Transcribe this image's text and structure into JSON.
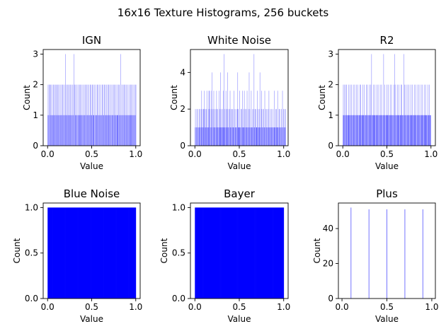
{
  "suptitle": "16x16 Texture Histograms, 256 buckets",
  "colors": {
    "bar": "#0000ff",
    "axis": "#000000",
    "background": "#ffffff"
  },
  "chart_data": [
    {
      "type": "bar",
      "title": "IGN",
      "xlabel": "Value",
      "ylabel": "Count",
      "xlim": [
        -0.05,
        1.05
      ],
      "ylim": [
        0,
        3.15
      ],
      "xticks": [
        0.0,
        0.5,
        1.0
      ],
      "xtick_labels": [
        "0.0",
        "0.5",
        "1.0"
      ],
      "yticks": [
        0,
        1,
        2,
        3
      ],
      "ytick_labels": [
        "0",
        "1",
        "2",
        "3"
      ],
      "bins": 256,
      "bin_range": [
        0,
        1
      ],
      "counts_estimated": true,
      "values": [
        1,
        2,
        1,
        0,
        2,
        1,
        0,
        2,
        1,
        2,
        0,
        1,
        2,
        1,
        0,
        1,
        2,
        1,
        0,
        2,
        1,
        1,
        2,
        0,
        1,
        2,
        1,
        0,
        2,
        1,
        2,
        1,
        0,
        1,
        2,
        1,
        0,
        1,
        2,
        1,
        1,
        0,
        2,
        1,
        2,
        1,
        0,
        1,
        2,
        0,
        1,
        3,
        1,
        0,
        2,
        1,
        1,
        2,
        0,
        1,
        2,
        1,
        0,
        1,
        2,
        1,
        2,
        0,
        1,
        1,
        2,
        0,
        1,
        2,
        1,
        0,
        3,
        1,
        2,
        0,
        1,
        2,
        1,
        1,
        0,
        2,
        1,
        0,
        1,
        2,
        1,
        0,
        2,
        1,
        1,
        2,
        0,
        1,
        2,
        1,
        1,
        0,
        2,
        1,
        0,
        1,
        2,
        1,
        1,
        0,
        2,
        1,
        2,
        0,
        1,
        1,
        2,
        0,
        1,
        2,
        1,
        0,
        1,
        2,
        1,
        0,
        2,
        1,
        1,
        2,
        0,
        1,
        2,
        1,
        1,
        0,
        2,
        1,
        0,
        1,
        2,
        1,
        1,
        0,
        2,
        1,
        2,
        1,
        0,
        1,
        2,
        1,
        0,
        1,
        2,
        1,
        1,
        0,
        2,
        1,
        2,
        0,
        1,
        1,
        2,
        0,
        1,
        2,
        1,
        0,
        1,
        2,
        1,
        0,
        2,
        1,
        1,
        2,
        0,
        1,
        2,
        1,
        1,
        0,
        2,
        1,
        0,
        1,
        2,
        1,
        1,
        0,
        2,
        1,
        2,
        1,
        0,
        1,
        2,
        1,
        0,
        1,
        2,
        1,
        1,
        0,
        2,
        1,
        2,
        0,
        1,
        1,
        3,
        0,
        1,
        2,
        1,
        0,
        1,
        2,
        1,
        0,
        2,
        1,
        1,
        2,
        0,
        1,
        2,
        1,
        1,
        0,
        2,
        1,
        0,
        1,
        2,
        1,
        1,
        0,
        2,
        1,
        2,
        1,
        0,
        1,
        2,
        1,
        0,
        1,
        2,
        1,
        1,
        0,
        2,
        1,
        2
      ]
    },
    {
      "type": "bar",
      "title": "White Noise",
      "xlabel": "Value",
      "ylabel": "Count",
      "xlim": [
        -0.05,
        1.05
      ],
      "ylim": [
        0,
        5.25
      ],
      "xticks": [
        0.0,
        0.5,
        1.0
      ],
      "xtick_labels": [
        "0.0",
        "0.5",
        "1.0"
      ],
      "yticks": [
        0,
        2,
        4
      ],
      "ytick_labels": [
        "0",
        "2",
        "4"
      ],
      "bins": 256,
      "bin_range": [
        0,
        1
      ],
      "counts_estimated": true,
      "values": [
        1,
        2,
        0,
        1,
        1,
        2,
        0,
        1,
        2,
        1,
        0,
        1,
        1,
        2,
        2,
        1,
        0,
        1,
        2,
        3,
        1,
        1,
        0,
        2,
        1,
        2,
        3,
        2,
        1,
        0,
        1,
        2,
        2,
        1,
        3,
        0,
        1,
        1,
        2,
        1,
        3,
        3,
        1,
        2,
        0,
        1,
        3,
        1,
        2,
        4,
        1,
        0,
        2,
        1,
        3,
        1,
        2,
        1,
        1,
        0,
        2,
        1,
        3,
        2,
        1,
        1,
        2,
        1,
        0,
        3,
        1,
        2,
        1,
        4,
        1,
        2,
        1,
        0,
        1,
        2,
        1,
        3,
        1,
        1,
        5,
        2,
        1,
        0,
        1,
        3,
        2,
        1,
        1,
        2,
        4,
        1,
        1,
        2,
        0,
        1,
        2,
        3,
        1,
        1,
        2,
        1,
        0,
        2,
        1,
        2,
        1,
        1,
        3,
        1,
        0,
        2,
        1,
        1,
        2,
        1,
        0,
        1,
        2,
        4,
        1,
        2,
        1,
        1,
        3,
        1,
        0,
        1,
        2,
        1,
        2,
        0,
        1,
        3,
        1,
        1,
        2,
        1,
        3,
        1,
        0,
        2,
        1,
        1,
        2,
        1,
        3,
        1,
        0,
        1,
        2,
        1,
        4,
        1,
        2,
        1,
        0,
        1,
        3,
        1,
        1,
        2,
        1,
        0,
        1,
        2,
        5,
        1,
        1,
        2,
        0,
        1,
        2,
        1,
        1,
        3,
        1,
        0,
        2,
        1,
        1,
        2,
        1,
        4,
        1,
        0,
        1,
        2,
        3,
        1,
        1,
        2,
        0,
        1,
        2,
        1,
        1,
        3,
        1,
        0,
        2,
        1,
        1,
        2,
        1,
        0,
        1,
        2,
        1,
        3,
        1,
        1,
        0,
        2,
        1,
        1,
        2,
        1,
        0,
        1,
        1,
        2,
        1,
        0,
        1,
        3,
        1,
        1,
        2,
        0,
        1,
        2,
        1,
        1,
        3,
        1,
        0,
        1,
        2,
        1,
        2,
        1,
        0,
        1,
        1,
        2,
        1,
        0,
        3,
        1,
        1,
        2,
        0,
        1,
        2,
        1,
        1,
        2
      ]
    },
    {
      "type": "bar",
      "title": "R2",
      "xlabel": "Value",
      "ylabel": "Count",
      "xlim": [
        -0.05,
        1.05
      ],
      "ylim": [
        0,
        3.15
      ],
      "xticks": [
        0.0,
        0.5,
        1.0
      ],
      "xtick_labels": [
        "0.0",
        "0.5",
        "1.0"
      ],
      "yticks": [
        0,
        1,
        2,
        3
      ],
      "ytick_labels": [
        "0",
        "1",
        "2",
        "3"
      ],
      "bins": 256,
      "bin_range": [
        0,
        1
      ],
      "counts_estimated": true,
      "values": [
        1,
        2,
        1,
        1,
        2,
        1,
        0,
        1,
        2,
        1,
        1,
        2,
        1,
        0,
        1,
        1,
        2,
        1,
        1,
        1,
        0,
        2,
        1,
        1,
        1,
        2,
        1,
        0,
        1,
        1,
        2,
        1,
        1,
        1,
        2,
        1,
        0,
        1,
        1,
        2,
        1,
        1,
        1,
        2,
        1,
        0,
        1,
        1,
        1,
        2,
        1,
        1,
        2,
        1,
        0,
        1,
        1,
        1,
        2,
        1,
        1,
        1,
        2,
        0,
        1,
        1,
        1,
        1,
        2,
        1,
        1,
        2,
        1,
        0,
        1,
        1,
        1,
        2,
        1,
        1,
        1,
        2,
        1,
        3,
        1,
        0,
        1,
        1,
        2,
        1,
        1,
        1,
        2,
        1,
        1,
        0,
        1,
        1,
        2,
        1,
        1,
        1,
        2,
        1,
        0,
        1,
        1,
        1,
        2,
        1,
        1,
        1,
        2,
        1,
        1,
        0,
        1,
        1,
        3,
        1,
        1,
        2,
        1,
        1,
        0,
        1,
        1,
        2,
        1,
        1,
        1,
        2,
        1,
        1,
        0,
        1,
        1,
        2,
        1,
        1,
        1,
        2,
        1,
        1,
        1,
        0,
        1,
        1,
        2,
        1,
        3,
        1,
        1,
        2,
        1,
        0,
        1,
        1,
        2,
        1,
        1,
        1,
        2,
        1,
        0,
        1,
        1,
        1,
        2,
        1,
        1,
        2,
        1,
        1,
        0,
        1,
        1,
        3,
        1,
        2,
        1,
        1,
        1,
        2,
        0,
        1,
        1,
        1,
        2,
        1,
        1,
        1,
        2,
        1,
        0,
        1,
        1,
        2,
        1,
        1,
        1,
        2,
        1,
        1,
        0,
        1,
        1,
        2,
        1,
        1,
        1,
        2,
        1,
        1,
        0,
        1,
        1,
        2,
        1,
        1,
        1,
        2,
        1,
        1,
        0,
        1,
        1,
        2,
        1,
        1,
        1,
        2,
        1,
        1,
        0,
        1,
        1,
        2,
        1,
        1,
        1,
        2,
        1,
        1,
        0,
        1,
        1,
        2,
        1,
        1,
        1,
        2,
        1,
        1,
        1,
        1
      ]
    },
    {
      "type": "bar",
      "title": "Blue Noise",
      "xlabel": "Value",
      "ylabel": "Count",
      "xlim": [
        -0.05,
        1.05
      ],
      "ylim": [
        0,
        1.05
      ],
      "xticks": [
        0.0,
        0.5,
        1.0
      ],
      "xtick_labels": [
        "0.0",
        "0.5",
        "1.0"
      ],
      "yticks": [
        0.0,
        0.5,
        1.0
      ],
      "ytick_labels": [
        "0.0",
        "0.5",
        "1.0"
      ],
      "bins": 256,
      "bin_range": [
        0,
        1
      ],
      "uniform_count": 1
    },
    {
      "type": "bar",
      "title": "Bayer",
      "xlabel": "Value",
      "ylabel": "Count",
      "xlim": [
        -0.05,
        1.05
      ],
      "ylim": [
        0,
        1.05
      ],
      "xticks": [
        0.0,
        0.5,
        1.0
      ],
      "xtick_labels": [
        "0.0",
        "0.5",
        "1.0"
      ],
      "yticks": [
        0.0,
        0.5,
        1.0
      ],
      "ytick_labels": [
        "0.0",
        "0.5",
        "1.0"
      ],
      "bins": 256,
      "bin_range": [
        0,
        1
      ],
      "uniform_count": 1
    },
    {
      "type": "bar",
      "title": "Plus",
      "xlabel": "Value",
      "ylabel": "Count",
      "xlim": [
        -0.04,
        1.04
      ],
      "ylim": [
        0,
        54.6
      ],
      "xticks": [
        0.0,
        0.5,
        1.0
      ],
      "xtick_labels": [
        "0.0",
        "0.5",
        "1.0"
      ],
      "yticks": [
        0,
        20,
        40
      ],
      "ytick_labels": [
        "0",
        "20",
        "40"
      ],
      "bins": 256,
      "bin_range": [
        0.1,
        0.9
      ],
      "spikes": [
        {
          "x": 0.1,
          "count": 52
        },
        {
          "x": 0.3,
          "count": 51
        },
        {
          "x": 0.5,
          "count": 51
        },
        {
          "x": 0.7,
          "count": 51
        },
        {
          "x": 0.9,
          "count": 51
        }
      ]
    }
  ]
}
